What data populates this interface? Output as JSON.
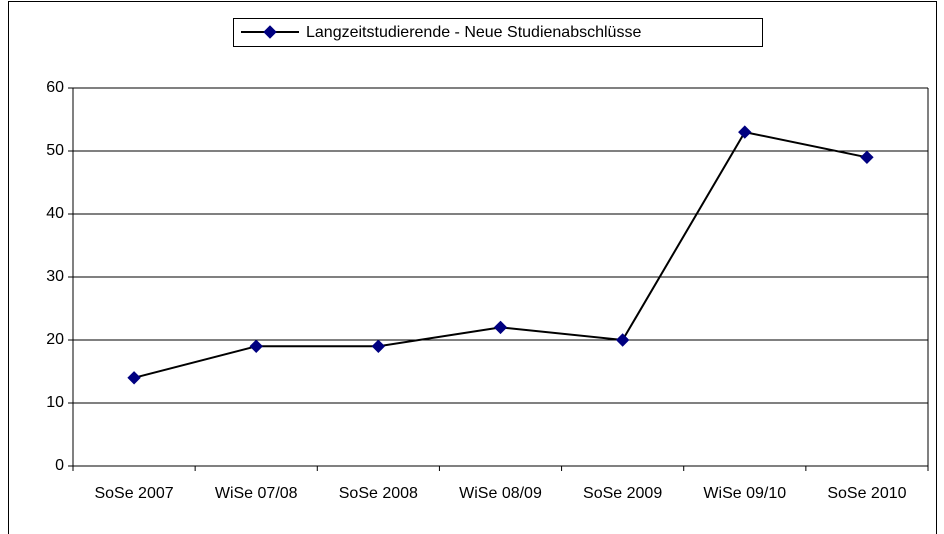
{
  "chart_data": {
    "type": "line",
    "categories": [
      "SoSe 2007",
      "WiSe 07/08",
      "SoSe 2008",
      "WiSe 08/09",
      "SoSe 2009",
      "WiSe 09/10",
      "SoSe 2010"
    ],
    "series": [
      {
        "name": "Langzeitstudierende - Neue Studienabschlüsse",
        "color": "#000080",
        "line_color": "#000000",
        "values": [
          14,
          19,
          19,
          22,
          20,
          53,
          49
        ]
      }
    ],
    "ylim": [
      0,
      60
    ],
    "yticks": [
      0,
      10,
      20,
      30,
      40,
      50,
      60
    ],
    "grid": true,
    "legend": "top"
  }
}
